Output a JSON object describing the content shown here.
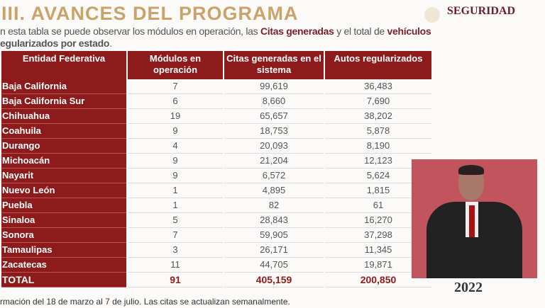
{
  "header": {
    "title": "III. AVANCES DEL PROGRAMA",
    "brand": "SEGURIDAD"
  },
  "subtitle": {
    "p1": "n esta tabla se puede observar los módulos en operación, las ",
    "b1": "Citas generadas",
    "p2": " y el total de ",
    "b2": "vehículos",
    "p3": "egularizados por estado",
    "p4": "."
  },
  "table": {
    "headers": [
      "Entidad Federativa",
      "Módulos en operación",
      "Citas generadas en el sistema",
      "Autos regularizados"
    ],
    "rows": [
      [
        "Baja California",
        "7",
        "99,619",
        "36,483"
      ],
      [
        "Baja California Sur",
        "6",
        "8,660",
        "7,690"
      ],
      [
        "Chihuahua",
        "19",
        "65,657",
        "38,202"
      ],
      [
        "Coahuila",
        "9",
        "18,753",
        "5,878"
      ],
      [
        "Durango",
        "4",
        "20,093",
        "8,190"
      ],
      [
        "Michoacán",
        "9",
        "21,204",
        "12,123"
      ],
      [
        "Nayarit",
        "9",
        "6,572",
        "5,624"
      ],
      [
        "Nuevo León",
        "1",
        "4,895",
        "1,815"
      ],
      [
        "Puebla",
        "1",
        "82",
        "61"
      ],
      [
        "Sinaloa",
        "5",
        "28,843",
        "16,270"
      ],
      [
        "Sonora",
        "7",
        "59,905",
        "37,298"
      ],
      [
        "Tamaulipas",
        "3",
        "26,171",
        "11,345"
      ],
      [
        "Zacatecas",
        "11",
        "44,705",
        "19,871"
      ]
    ],
    "total": [
      "TOTAL",
      "91",
      "405,159",
      "200,850"
    ]
  },
  "overlay": {
    "year": "2022"
  },
  "footer": "rmación del 18 de marzo al 7 de julio. Las citas se actualizan semanalmente."
}
